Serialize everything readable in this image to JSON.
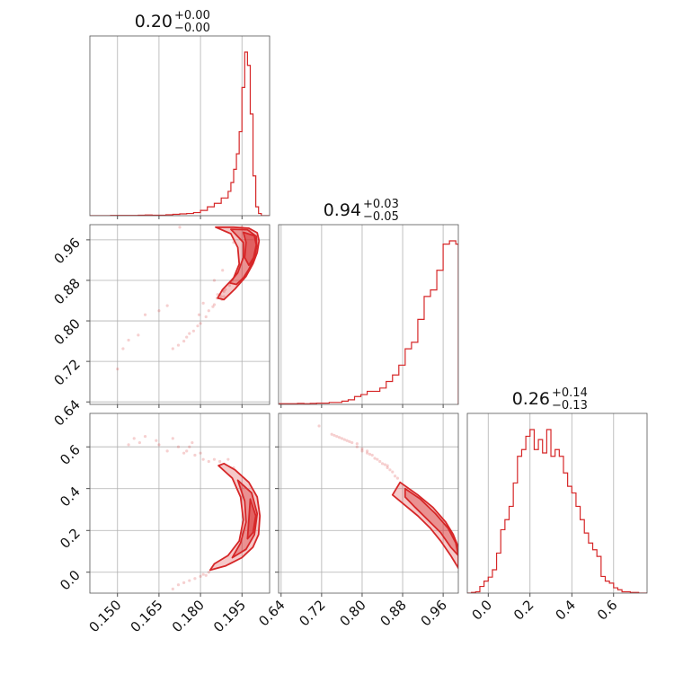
{
  "chart_data": {
    "type": "corner",
    "color": "#d62728",
    "grid": true,
    "parameters": [
      {
        "range": [
          0.14,
          0.205
        ],
        "ticks": [
          0.15,
          0.165,
          0.18,
          0.195
        ],
        "tick_labels": [
          "0.150",
          "0.165",
          "0.180",
          "0.195"
        ]
      },
      {
        "range": [
          0.635,
          0.99
        ],
        "ticks": [
          0.64,
          0.72,
          0.8,
          0.88,
          0.96
        ],
        "tick_labels": [
          "0.64",
          "0.72",
          "0.80",
          "0.88",
          "0.96"
        ]
      },
      {
        "range": [
          -0.1,
          0.76
        ],
        "ticks": [
          0.0,
          0.2,
          0.4,
          0.6
        ],
        "tick_labels": [
          "0.0",
          "0.2",
          "0.4",
          "0.6"
        ]
      }
    ],
    "titles": [
      {
        "main": "0.20",
        "sup": "+0.00",
        "sub": "−0.00"
      },
      {
        "main": "0.94",
        "sup": "+0.03",
        "sub": "−0.05"
      },
      {
        "main": "0.26",
        "sup": "+0.14",
        "sub": "−0.13"
      }
    ],
    "histograms": [
      {
        "param": 0,
        "edges": [
          0.14,
          0.1425,
          0.145,
          0.1475,
          0.15,
          0.1525,
          0.155,
          0.1575,
          0.16,
          0.1625,
          0.165,
          0.1675,
          0.17,
          0.1725,
          0.175,
          0.1775,
          0.18,
          0.1825,
          0.185,
          0.1875,
          0.19,
          0.191,
          0.192,
          0.193,
          0.194,
          0.195,
          0.196,
          0.197,
          0.198,
          0.199,
          0.2,
          0.201,
          0.202,
          0.205
        ],
        "counts": [
          0,
          0,
          0,
          0.5,
          0.5,
          0.5,
          0.5,
          1,
          1.5,
          1,
          1,
          2,
          3,
          4,
          5,
          7,
          12,
          20,
          28,
          40,
          55,
          75,
          105,
          140,
          190,
          290,
          370,
          340,
          230,
          90,
          20,
          5,
          0,
          0
        ]
      },
      {
        "param": 1,
        "edges": [
          0.635,
          0.6475,
          0.66,
          0.6725,
          0.685,
          0.6975,
          0.71,
          0.7225,
          0.735,
          0.7475,
          0.76,
          0.7725,
          0.785,
          0.7975,
          0.81,
          0.8225,
          0.835,
          0.8475,
          0.86,
          0.8725,
          0.885,
          0.8975,
          0.91,
          0.9225,
          0.935,
          0.9475,
          0.96,
          0.9725,
          0.985,
          0.99
        ],
        "counts": [
          1,
          1,
          1,
          1.5,
          1,
          1.5,
          2,
          2,
          3,
          3,
          5,
          7,
          12,
          15,
          20,
          20,
          25,
          35,
          45,
          60,
          85,
          95,
          130,
          165,
          175,
          205,
          245,
          250,
          245,
          0
        ]
      },
      {
        "param": 2,
        "edges": [
          -0.1,
          -0.08,
          -0.06,
          -0.04,
          -0.02,
          0.0,
          0.02,
          0.04,
          0.06,
          0.08,
          0.1,
          0.12,
          0.14,
          0.16,
          0.18,
          0.2,
          0.22,
          0.24,
          0.26,
          0.28,
          0.3,
          0.32,
          0.34,
          0.36,
          0.38,
          0.4,
          0.42,
          0.44,
          0.46,
          0.48,
          0.5,
          0.52,
          0.54,
          0.56,
          0.58,
          0.6,
          0.62,
          0.64,
          0.66,
          0.68,
          0.7,
          0.72,
          0.74,
          0.76
        ],
        "counts": [
          0,
          1,
          2,
          10,
          18,
          24,
          35,
          60,
          95,
          110,
          130,
          165,
          205,
          215,
          235,
          245,
          215,
          230,
          210,
          245,
          205,
          215,
          205,
          180,
          160,
          150,
          130,
          110,
          90,
          75,
          65,
          55,
          25,
          18,
          15,
          8,
          5,
          2,
          2,
          1,
          1,
          0,
          0
        ]
      }
    ],
    "pairs": [
      {
        "x_param": 0,
        "y_param": 1,
        "contours": [
          [
            [
              0.1855,
              0.985
            ],
            [
              0.192,
              0.985
            ],
            [
              0.1975,
              0.983
            ],
            [
              0.2005,
              0.974
            ],
            [
              0.2012,
              0.958
            ],
            [
              0.2005,
              0.935
            ],
            [
              0.199,
              0.913
            ],
            [
              0.1965,
              0.888
            ],
            [
              0.1925,
              0.863
            ],
            [
              0.1885,
              0.842
            ],
            [
              0.1862,
              0.845
            ],
            [
              0.188,
              0.862
            ],
            [
              0.192,
              0.885
            ],
            [
              0.194,
              0.912
            ],
            [
              0.1935,
              0.945
            ],
            [
              0.191,
              0.972
            ],
            [
              0.1855,
              0.985
            ]
          ],
          [
            [
              0.191,
              0.981
            ],
            [
              0.197,
              0.98
            ],
            [
              0.2002,
              0.967
            ],
            [
              0.2004,
              0.948
            ],
            [
              0.1995,
              0.925
            ],
            [
              0.1975,
              0.902
            ],
            [
              0.1955,
              0.885
            ],
            [
              0.193,
              0.872
            ],
            [
              0.1905,
              0.875
            ],
            [
              0.1935,
              0.895
            ],
            [
              0.1955,
              0.925
            ],
            [
              0.1955,
              0.955
            ],
            [
              0.191,
              0.981
            ]
          ],
          [
            [
              0.1955,
              0.975
            ],
            [
              0.1995,
              0.968
            ],
            [
              0.2002,
              0.95
            ],
            [
              0.1992,
              0.925
            ],
            [
              0.1975,
              0.91
            ],
            [
              0.196,
              0.925
            ],
            [
              0.1965,
              0.955
            ],
            [
              0.1955,
              0.975
            ]
          ]
        ],
        "points": [
          [
            0.187,
            0.852
          ],
          [
            0.188,
            0.86
          ],
          [
            0.1885,
            0.858
          ],
          [
            0.1875,
            0.848
          ],
          [
            0.1885,
            0.848
          ],
          [
            0.186,
            0.845
          ],
          [
            0.1862,
            0.852
          ],
          [
            0.189,
            0.862
          ],
          [
            0.1878,
            0.842
          ],
          [
            0.185,
            0.832
          ],
          [
            0.183,
            0.82
          ],
          [
            0.1845,
            0.828
          ],
          [
            0.182,
            0.808
          ],
          [
            0.18,
            0.795
          ],
          [
            0.179,
            0.79
          ],
          [
            0.1775,
            0.78
          ],
          [
            0.176,
            0.775
          ],
          [
            0.175,
            0.768
          ],
          [
            0.174,
            0.76
          ],
          [
            0.172,
            0.752
          ],
          [
            0.17,
            0.745
          ],
          [
            0.168,
            0.83
          ],
          [
            0.165,
            0.82
          ],
          [
            0.16,
            0.812
          ],
          [
            0.1575,
            0.772
          ],
          [
            0.154,
            0.762
          ],
          [
            0.152,
            0.745
          ],
          [
            0.185,
            0.88
          ],
          [
            0.188,
            0.9
          ],
          [
            0.192,
            0.955
          ],
          [
            0.195,
            0.985
          ],
          [
            0.198,
            0.98
          ],
          [
            0.2,
            0.96
          ],
          [
            0.181,
            0.835
          ],
          [
            0.1795,
            0.812
          ],
          [
            0.1905,
            0.87
          ],
          [
            0.1915,
            0.88
          ],
          [
            0.193,
            0.895
          ],
          [
            0.1725,
            0.985
          ],
          [
            0.15,
            0.705
          ]
        ]
      },
      {
        "x_param": 0,
        "y_param": 2,
        "contours": [
          [
            [
              0.1885,
              0.52
            ],
            [
              0.1925,
              0.49
            ],
            [
              0.1975,
              0.43
            ],
            [
              0.2005,
              0.36
            ],
            [
              0.2015,
              0.27
            ],
            [
              0.201,
              0.18
            ],
            [
              0.199,
              0.12
            ],
            [
              0.195,
              0.07
            ],
            [
              0.189,
              0.03
            ],
            [
              0.1835,
              0.01
            ],
            [
              0.185,
              0.04
            ],
            [
              0.19,
              0.08
            ],
            [
              0.194,
              0.15
            ],
            [
              0.1955,
              0.25
            ],
            [
              0.1945,
              0.36
            ],
            [
              0.1915,
              0.45
            ],
            [
              0.1865,
              0.51
            ],
            [
              0.1885,
              0.52
            ]
          ],
          [
            [
              0.1935,
              0.44
            ],
            [
              0.1985,
              0.38
            ],
            [
              0.2005,
              0.28
            ],
            [
              0.1995,
              0.18
            ],
            [
              0.1965,
              0.11
            ],
            [
              0.1915,
              0.07
            ],
            [
              0.1945,
              0.14
            ],
            [
              0.1965,
              0.24
            ],
            [
              0.196,
              0.34
            ],
            [
              0.1935,
              0.44
            ]
          ],
          [
            [
              0.198,
              0.35
            ],
            [
              0.2,
              0.27
            ],
            [
              0.199,
              0.19
            ],
            [
              0.197,
              0.16
            ],
            [
              0.1975,
              0.25
            ],
            [
              0.198,
              0.35
            ]
          ]
        ],
        "points": [
          [
            0.156,
            0.64
          ],
          [
            0.158,
            0.62
          ],
          [
            0.164,
            0.63
          ],
          [
            0.165,
            0.61
          ],
          [
            0.17,
            0.64
          ],
          [
            0.172,
            0.6
          ],
          [
            0.174,
            0.57
          ],
          [
            0.176,
            0.6
          ],
          [
            0.178,
            0.56
          ],
          [
            0.18,
            0.57
          ],
          [
            0.181,
            0.54
          ],
          [
            0.183,
            0.53
          ],
          [
            0.185,
            0.54
          ],
          [
            0.187,
            0.53
          ],
          [
            0.177,
            0.62
          ],
          [
            0.175,
            0.58
          ],
          [
            0.17,
            -0.08
          ],
          [
            0.172,
            -0.06
          ],
          [
            0.174,
            -0.05
          ],
          [
            0.176,
            -0.04
          ],
          [
            0.178,
            -0.03
          ],
          [
            0.18,
            -0.02
          ],
          [
            0.181,
            -0.01
          ],
          [
            0.183,
            0.0
          ],
          [
            0.182,
            -0.015
          ],
          [
            0.154,
            0.61
          ],
          [
            0.16,
            0.65
          ],
          [
            0.168,
            0.58
          ],
          [
            0.19,
            0.54
          ],
          [
            0.192,
            0.5
          ]
        ]
      },
      {
        "x_param": 1,
        "y_param": 2,
        "contours": [
          [
            [
              0.875,
              0.43
            ],
            [
              0.91,
              0.37
            ],
            [
              0.94,
              0.31
            ],
            [
              0.965,
              0.24
            ],
            [
              0.98,
              0.18
            ],
            [
              0.99,
              0.12
            ],
            [
              0.99,
              0.02
            ],
            [
              0.975,
              0.08
            ],
            [
              0.955,
              0.15
            ],
            [
              0.935,
              0.21
            ],
            [
              0.91,
              0.27
            ],
            [
              0.885,
              0.32
            ],
            [
              0.86,
              0.37
            ],
            [
              0.875,
              0.43
            ]
          ],
          [
            [
              0.885,
              0.4
            ],
            [
              0.915,
              0.35
            ],
            [
              0.945,
              0.28
            ],
            [
              0.97,
              0.21
            ],
            [
              0.985,
              0.14
            ],
            [
              0.99,
              0.08
            ],
            [
              0.975,
              0.12
            ],
            [
              0.955,
              0.19
            ],
            [
              0.93,
              0.25
            ],
            [
              0.905,
              0.31
            ],
            [
              0.885,
              0.36
            ],
            [
              0.885,
              0.4
            ]
          ]
        ],
        "points": [
          [
            0.715,
            0.7
          ],
          [
            0.74,
            0.66
          ],
          [
            0.75,
            0.65
          ],
          [
            0.76,
            0.64
          ],
          [
            0.77,
            0.63
          ],
          [
            0.78,
            0.62
          ],
          [
            0.79,
            0.6
          ],
          [
            0.8,
            0.59
          ],
          [
            0.81,
            0.57
          ],
          [
            0.82,
            0.56
          ],
          [
            0.83,
            0.54
          ],
          [
            0.84,
            0.52
          ],
          [
            0.85,
            0.5
          ],
          [
            0.855,
            0.49
          ],
          [
            0.86,
            0.48
          ],
          [
            0.865,
            0.46
          ],
          [
            0.87,
            0.45
          ],
          [
            0.8,
            0.58
          ],
          [
            0.81,
            0.58
          ],
          [
            0.815,
            0.565
          ],
          [
            0.825,
            0.545
          ],
          [
            0.835,
            0.53
          ],
          [
            0.845,
            0.515
          ],
          [
            0.85,
            0.51
          ],
          [
            0.79,
            0.615
          ],
          [
            0.775,
            0.625
          ],
          [
            0.765,
            0.635
          ],
          [
            0.755,
            0.645
          ],
          [
            0.745,
            0.655
          ]
        ]
      }
    ]
  }
}
